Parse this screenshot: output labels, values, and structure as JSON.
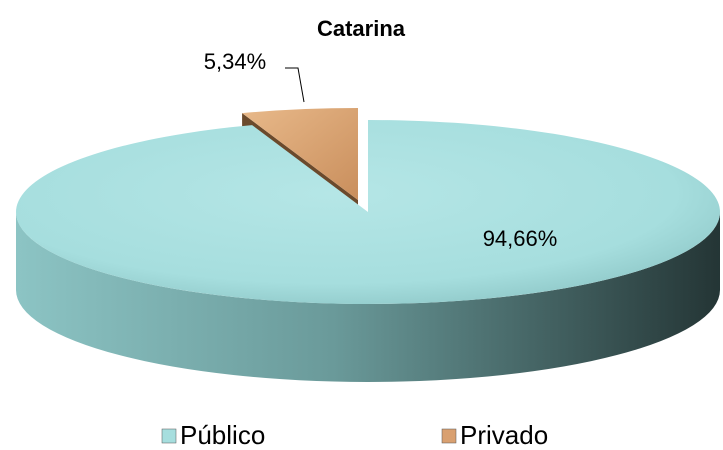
{
  "chart_data": {
    "type": "pie",
    "title": "Catarina",
    "categories": [
      "Público",
      "Privado"
    ],
    "values": [
      94.66,
      5.34
    ],
    "value_labels": [
      "94,66%",
      "5,34%"
    ],
    "colors": [
      "#a6dede",
      "#d9a070"
    ],
    "legend": "bottom"
  }
}
